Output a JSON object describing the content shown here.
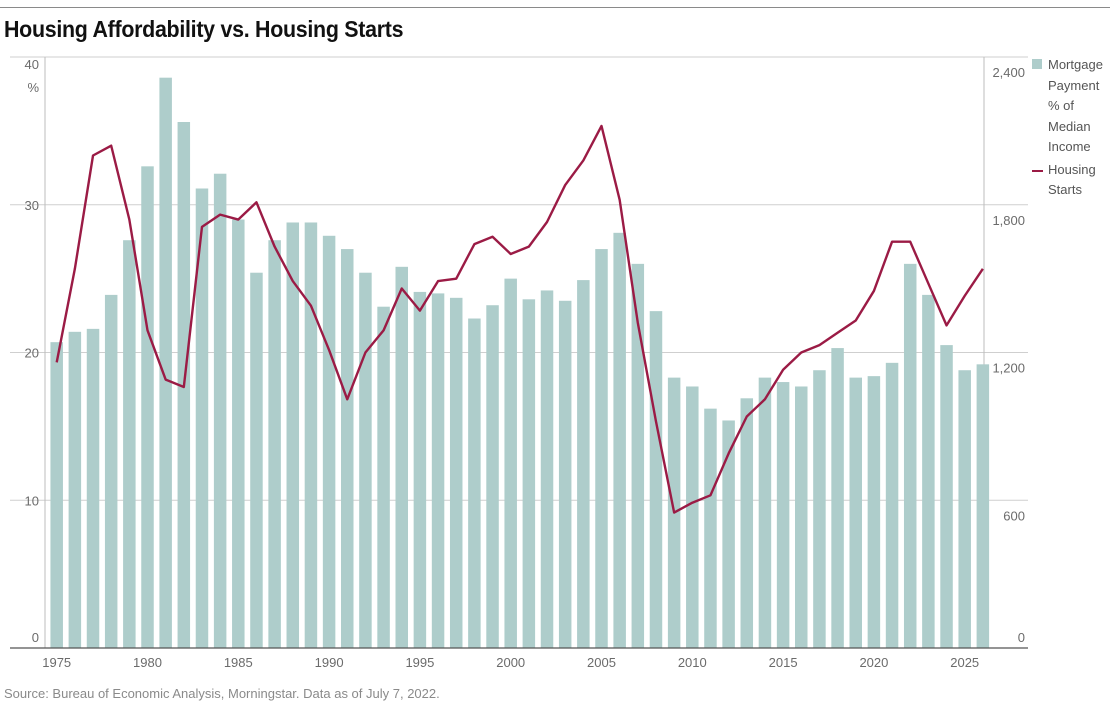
{
  "title": "Housing Affordability vs. Housing Starts",
  "source": "Source: Bureau of Economic Analysis, Morningstar. Data as of July 7, 2022.",
  "chart_data": {
    "type": "bar",
    "colors": {
      "bars": "#aecdcb",
      "line": "#9b1b45",
      "grid": "#cfcfcf"
    },
    "x": [
      1975,
      1976,
      1977,
      1978,
      1979,
      1980,
      1981,
      1982,
      1983,
      1984,
      1985,
      1986,
      1987,
      1988,
      1989,
      1990,
      1991,
      1992,
      1993,
      1994,
      1995,
      1996,
      1997,
      1998,
      1999,
      2000,
      2001,
      2002,
      2003,
      2004,
      2005,
      2006,
      2007,
      2008,
      2009,
      2010,
      2011,
      2012,
      2013,
      2014,
      2015,
      2016,
      2017,
      2018,
      2019,
      2020,
      2021,
      2022,
      2023,
      2024,
      2025,
      2026
    ],
    "x_ticks": [
      "1975",
      "1980",
      "1985",
      "1990",
      "1995",
      "2000",
      "2005",
      "2010",
      "2015",
      "2020",
      "2025"
    ],
    "y_left": {
      "ylim": [
        0,
        40
      ],
      "ticks": [
        "0",
        "10",
        "20",
        "30",
        "40"
      ],
      "unit": "%"
    },
    "y_right": {
      "ylim": [
        0,
        2400
      ],
      "ticks": [
        "0",
        "600",
        "1,200",
        "1,800",
        "2,400"
      ]
    },
    "legend_position": "right",
    "series": [
      {
        "name": "Mortgage Payment % of Median Income",
        "type": "bar",
        "axis": "left",
        "values": [
          20.7,
          21.4,
          21.6,
          23.9,
          27.6,
          32.6,
          38.6,
          35.6,
          31.1,
          32.1,
          29.0,
          25.4,
          27.6,
          28.8,
          28.8,
          27.9,
          27.0,
          25.4,
          23.1,
          25.8,
          24.1,
          24.0,
          23.7,
          22.3,
          23.2,
          25.0,
          23.6,
          24.2,
          23.5,
          24.9,
          27.0,
          28.1,
          26.0,
          22.8,
          18.3,
          17.7,
          16.2,
          15.4,
          16.9,
          18.3,
          18.0,
          17.7,
          18.8,
          20.3,
          18.3,
          18.4,
          19.3,
          26.0,
          23.9,
          20.5,
          18.8,
          19.2
        ]
      },
      {
        "name": "Housing Starts",
        "type": "line",
        "axis": "right",
        "values": [
          1160,
          1540,
          2000,
          2040,
          1740,
          1290,
          1090,
          1060,
          1710,
          1760,
          1740,
          1810,
          1630,
          1490,
          1390,
          1210,
          1010,
          1200,
          1290,
          1460,
          1370,
          1490,
          1500,
          1640,
          1670,
          1600,
          1630,
          1730,
          1880,
          1980,
          2120,
          1820,
          1320,
          920,
          550,
          590,
          620,
          790,
          940,
          1010,
          1130,
          1200,
          1230,
          1280,
          1330,
          1450,
          1650,
          1650,
          1480,
          1310,
          1430,
          1540
        ]
      }
    ]
  }
}
